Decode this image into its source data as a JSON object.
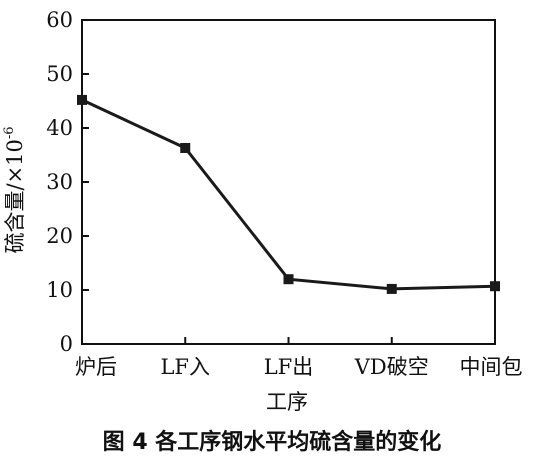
{
  "chart_data": {
    "type": "line",
    "categories": [
      "炉后",
      "LF入",
      "LF出",
      "VD破空",
      "中间包"
    ],
    "values": [
      45.2,
      36.3,
      12.0,
      10.2,
      10.7
    ],
    "xlabel": "工序",
    "ylabel": "硫含量/×10",
    "ylabel_exponent": "-6",
    "ylim": [
      0,
      60
    ],
    "yticks": [
      "0",
      "10",
      "20",
      "30",
      "40",
      "50",
      "60"
    ],
    "grid": false,
    "line_color": "#1a1a1a"
  },
  "caption": "图 4  各工序钢水平均硫含量的变化"
}
